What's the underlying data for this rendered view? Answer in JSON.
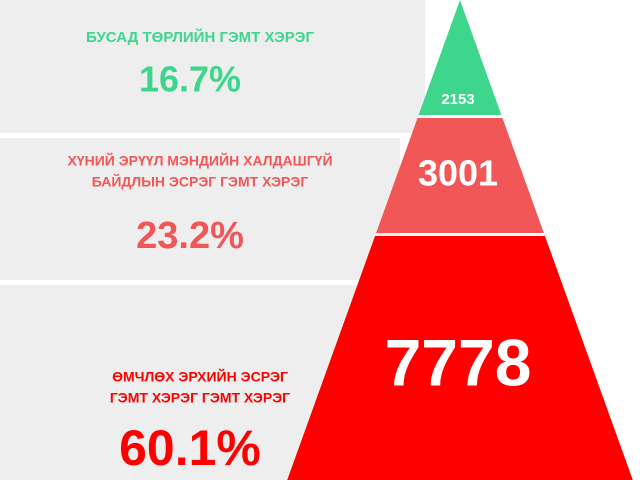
{
  "tiers": [
    {
      "label_lines": [
        "БУСАД ТӨРЛИЙН ГЭМТ ХЭРЭГ"
      ],
      "count": "2153",
      "share": "16.7%",
      "color": "#3dd68c"
    },
    {
      "label_lines": [
        "ХҮНИЙ ЭРҮҮЛ МЭНДИЙН ХАЛДАШГҮЙ",
        "БАЙДЛЫН ЭСРЭГ ГЭМТ ХЭРЭГ"
      ],
      "count": "3001",
      "share": "23.2%",
      "color": "#f25757"
    },
    {
      "label_lines": [
        "ӨМЧЛӨХ ЭРХИЙН ЭСРЭГ",
        "ГЭМТ ХЭРЭГ ГЭМТ ХЭРЭГ"
      ],
      "count": "7778",
      "share": "60.1%",
      "color": "#ff0000"
    }
  ]
}
